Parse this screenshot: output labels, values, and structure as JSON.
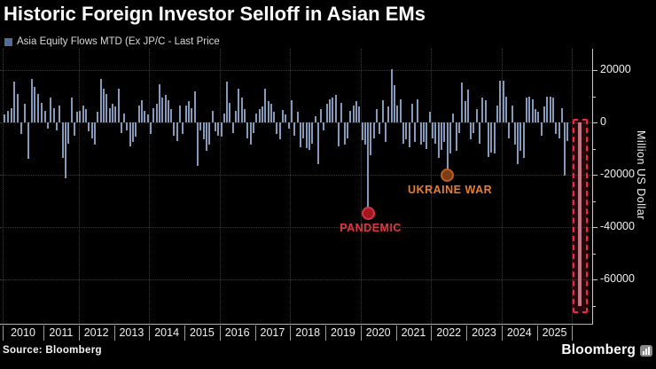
{
  "title": "Historic Foreign Investor Selloff in Asian EMs",
  "legend": {
    "label": "Asia Equity Flows MTD (Ex JP/C - Last Price",
    "swatch_color": "#4f6f98"
  },
  "source": "Source: Bloomberg",
  "brand": "Bloomberg",
  "colors": {
    "background": "#000000",
    "bar": "#8599bc",
    "grid": "#3b3b3b",
    "axis": "#c8c8c8",
    "text": "#f2f2f2",
    "highlight_red": "#fa2342",
    "pandemic_text": "#e23840",
    "ukraine_text": "#ed7d2b"
  },
  "chart_data": {
    "type": "bar",
    "title": "Historic Foreign Investor Selloff in Asian EMs",
    "xlabel": "",
    "ylabel": "Million US Dollar",
    "legend_position": "top-left",
    "grid": "dotted, major ticks only",
    "ylim": [
      -77000,
      28000
    ],
    "y_ticks": [
      20000,
      0,
      -20000,
      -40000,
      -60000
    ],
    "y_minor_ticks": [
      10000,
      -10000,
      -30000,
      -50000,
      -70000
    ],
    "x_years": [
      "2010",
      "2011",
      "2012",
      "2013",
      "2014",
      "2015",
      "2016",
      "2017",
      "2018",
      "2019",
      "2020",
      "2021",
      "2022",
      "2023",
      "2024",
      "2025"
    ],
    "grid_year_indices": [
      0,
      2,
      4,
      6,
      8,
      10,
      12,
      14,
      16
    ],
    "series": [
      {
        "name": "Asia Equity Flows MTD (Ex JP/C - Last Price",
        "color": "#8599bc",
        "monthly_values_by_year": {
          "2010": [
            3000,
            4500,
            5500,
            15500,
            11000,
            -4500,
            7000,
            -14000,
            16500,
            13500,
            11000,
            7500
          ],
          "2011": [
            4500,
            -2500,
            9500,
            5500,
            -3000,
            6500,
            -13500,
            -21500,
            -8000,
            9500,
            -5000,
            4000
          ],
          "2012": [
            4500,
            6500,
            5000,
            -3500,
            -6000,
            -8500,
            4000,
            16500,
            13000,
            11000,
            5500,
            7000
          ],
          "2013": [
            6000,
            12800,
            -4000,
            3500,
            -3000,
            -9000,
            -7500,
            -5500,
            6500,
            8500,
            4500,
            3000
          ],
          "2014": [
            -4500,
            5500,
            7000,
            14500,
            9500,
            10500,
            8500,
            5000,
            -5000,
            -7000,
            6500,
            -4500
          ],
          "2015": [
            6500,
            8000,
            5500,
            12000,
            -16500,
            -3000,
            -6500,
            -11000,
            -8500,
            4500,
            -3500,
            -5000
          ],
          "2016": [
            -5500,
            3500,
            15500,
            7500,
            -4000,
            4500,
            13000,
            9500,
            5000,
            -6000,
            -8500,
            -4000
          ],
          "2017": [
            3500,
            5000,
            6000,
            12800,
            8000,
            7000,
            4000,
            -4500,
            -6500,
            4700,
            3000,
            -2500
          ],
          "2018": [
            8500,
            -5000,
            4000,
            -9500,
            -6000,
            -9700,
            -10500,
            -8000,
            2500,
            -15800,
            5000,
            -3000
          ],
          "2019": [
            7000,
            9000,
            9500,
            10500,
            -9000,
            7500,
            -8500,
            -6000,
            4500,
            6500,
            8000,
            6000
          ],
          "2020": [
            -6700,
            -8600,
            -34000,
            -12600,
            -6000,
            5000,
            -4500,
            8500,
            -7500,
            6000,
            20500,
            14200
          ],
          "2021": [
            6500,
            8800,
            -8000,
            -6500,
            -9500,
            7000,
            -7500,
            9000,
            -8500,
            -7400,
            -10100,
            4000
          ],
          "2022": [
            -6000,
            -8000,
            -13500,
            -10500,
            -7500,
            -19500,
            -12000,
            3500,
            -10800,
            -4000,
            15300,
            8000
          ],
          "2023": [
            12400,
            -6500,
            -4000,
            5000,
            -8000,
            9500,
            8500,
            -13100,
            -11500,
            -12000,
            6500,
            16000
          ],
          "2024": [
            15900,
            10000,
            -6000,
            6500,
            -8500,
            -16000,
            -11000,
            -13500,
            9500,
            10000,
            9000,
            5000
          ],
          "2025": [
            4000,
            -5000,
            6000,
            9800,
            10000,
            9500,
            -4500,
            -6000,
            5500,
            -20200,
            -7000
          ]
        }
      }
    ],
    "highlight_bar": {
      "value": -70000,
      "note": "Latest month record outflow, outlined with red dashed box at right edge",
      "box_color": "#fa2342",
      "bar_color": "#c47884"
    },
    "annotations": [
      {
        "label": "PANDEMIC",
        "year": "2020",
        "month_index": 2,
        "value": -34000,
        "text_color": "#e23840",
        "marker_fill": "#a51622",
        "marker_ring": "#d23642"
      },
      {
        "label": "UKRAINE WAR",
        "year": "2022",
        "month_index": 5,
        "value": -19500,
        "text_color": "#ed7d2b",
        "marker_fill": "#7e3c14",
        "marker_ring": "#bd5d1e"
      }
    ]
  }
}
